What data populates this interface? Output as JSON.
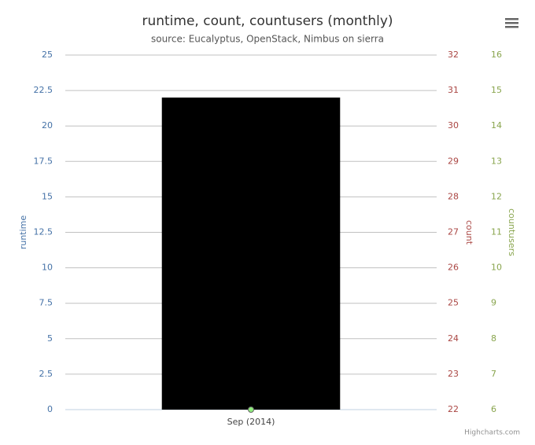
{
  "chart_data": {
    "type": "bar",
    "title": "runtime, count, countusers (monthly)",
    "subtitle": "source: Eucalyptus, OpenStack, Nimbus on sierra",
    "categories": [
      "Sep (2014)"
    ],
    "series": [
      {
        "type": "bar",
        "color": "#7cb5ec",
        "values": [
          22
        ],
        "axis": "y"
      },
      {
        "type": "line",
        "color": "#90ed7d",
        "values": [
          6
        ],
        "axis": "y3"
      }
    ],
    "ylabel": "runtime",
    "ylim": [
      0,
      25
    ],
    "yticks": [
      0,
      2.5,
      5,
      7.5,
      10,
      12.5,
      15,
      17.5,
      20,
      22.5,
      25
    ],
    "ycolor": "#4572a7",
    "y2label": "count",
    "y2lim": [
      22,
      32
    ],
    "y2ticks": [
      22,
      23,
      24,
      25,
      26,
      27,
      28,
      29,
      30,
      31,
      32
    ],
    "y2color": "#aa4643",
    "y3label": "countusers",
    "y3lim": [
      6,
      16
    ],
    "y3ticks": [
      6,
      7,
      8,
      9,
      10,
      11,
      12,
      13,
      14,
      15,
      16
    ],
    "y3color": "#89a54e",
    "grid": true,
    "credits": "Highcharts.com"
  }
}
